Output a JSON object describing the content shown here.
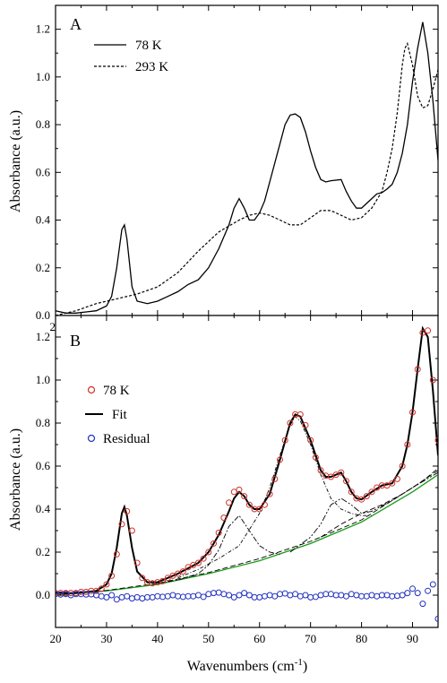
{
  "chart_data": [
    {
      "panel": "A",
      "type": "line",
      "xlabel": "Wavenumbers (cm⁻¹)",
      "ylabel": "Absorbance (a.u.)",
      "xlim": [
        20,
        95
      ],
      "ylim": [
        0.0,
        1.3
      ],
      "xticks": [
        "20",
        "30",
        "40",
        "50",
        "60",
        "70",
        "80",
        "90"
      ],
      "yticks": [
        "0.0",
        "0.2",
        "0.4",
        "0.6",
        "0.8",
        "1.0",
        "1.2"
      ],
      "legend_position": "top-left",
      "series": [
        {
          "name": "78 K",
          "style": "solid",
          "color": "#000000",
          "x": [
            20,
            22,
            24,
            26,
            28,
            30,
            31,
            32,
            33,
            33.5,
            34,
            35,
            36,
            38,
            40,
            42,
            44,
            46,
            48,
            50,
            52,
            54,
            55,
            56,
            57,
            58,
            59,
            60,
            61,
            62,
            64,
            65,
            66,
            67,
            68,
            69,
            70,
            71,
            72,
            73,
            74,
            76,
            77,
            78,
            79,
            80,
            81,
            82,
            83,
            84,
            85,
            86,
            87,
            88,
            89,
            90,
            91,
            92,
            93,
            94,
            95
          ],
          "y": [
            0.02,
            0.01,
            0.01,
            0.015,
            0.02,
            0.04,
            0.08,
            0.2,
            0.36,
            0.38,
            0.32,
            0.12,
            0.06,
            0.05,
            0.06,
            0.08,
            0.1,
            0.13,
            0.15,
            0.2,
            0.28,
            0.38,
            0.45,
            0.49,
            0.45,
            0.4,
            0.4,
            0.43,
            0.48,
            0.56,
            0.72,
            0.8,
            0.84,
            0.845,
            0.83,
            0.77,
            0.69,
            0.62,
            0.57,
            0.56,
            0.565,
            0.57,
            0.52,
            0.48,
            0.45,
            0.45,
            0.47,
            0.49,
            0.51,
            0.515,
            0.53,
            0.55,
            0.6,
            0.68,
            0.8,
            0.98,
            1.12,
            1.23,
            1.1,
            0.9,
            0.65
          ]
        },
        {
          "name": "293 K",
          "style": "dashed",
          "color": "#000000",
          "x": [
            20,
            24,
            28,
            32,
            36,
            40,
            44,
            48,
            52,
            56,
            58,
            60,
            62,
            64,
            66,
            68,
            70,
            72,
            74,
            76,
            78,
            80,
            82,
            84,
            85,
            86,
            87,
            88,
            88.5,
            89,
            90,
            91,
            92,
            93,
            94,
            95
          ],
          "y": [
            0.0,
            0.02,
            0.05,
            0.07,
            0.09,
            0.12,
            0.18,
            0.27,
            0.35,
            0.4,
            0.42,
            0.43,
            0.42,
            0.4,
            0.38,
            0.38,
            0.41,
            0.44,
            0.44,
            0.42,
            0.4,
            0.41,
            0.45,
            0.52,
            0.6,
            0.7,
            0.85,
            1.05,
            1.12,
            1.14,
            1.05,
            0.92,
            0.87,
            0.88,
            0.95,
            1.03
          ]
        }
      ]
    },
    {
      "panel": "B",
      "type": "line",
      "xlabel": "Wavenumbers (cm⁻¹)",
      "ylabel": "Absorbance (a.u.)",
      "xlim": [
        20,
        95
      ],
      "ylim": [
        -0.15,
        1.3
      ],
      "xticks": [
        "20",
        "30",
        "40",
        "50",
        "60",
        "70",
        "80",
        "90"
      ],
      "yticks": [
        "0.0",
        "0.2",
        "0.4",
        "0.6",
        "0.8",
        "1.0",
        "1.2"
      ],
      "legend_position": "top-left",
      "series": [
        {
          "name": "78 K",
          "style": "markers",
          "color": "#d0302a",
          "x": [
            20,
            21,
            22,
            23,
            24,
            25,
            26,
            27,
            28,
            29,
            30,
            31,
            32,
            33,
            34,
            35,
            36,
            37,
            38,
            39,
            40,
            41,
            42,
            43,
            44,
            45,
            46,
            47,
            48,
            49,
            50,
            51,
            52,
            53,
            54,
            55,
            56,
            57,
            58,
            59,
            60,
            61,
            62,
            63,
            64,
            65,
            66,
            67,
            68,
            69,
            70,
            71,
            72,
            73,
            74,
            75,
            76,
            77,
            78,
            79,
            80,
            81,
            82,
            83,
            84,
            85,
            86,
            87,
            88,
            89,
            90,
            91,
            92,
            93,
            94,
            95
          ],
          "y": [
            0.01,
            0.01,
            0.01,
            0.01,
            0.01,
            0.015,
            0.015,
            0.02,
            0.02,
            0.03,
            0.05,
            0.09,
            0.19,
            0.33,
            0.39,
            0.3,
            0.15,
            0.08,
            0.06,
            0.055,
            0.06,
            0.065,
            0.08,
            0.09,
            0.1,
            0.11,
            0.13,
            0.14,
            0.15,
            0.17,
            0.2,
            0.24,
            0.29,
            0.36,
            0.43,
            0.48,
            0.49,
            0.46,
            0.42,
            0.4,
            0.4,
            0.42,
            0.47,
            0.54,
            0.63,
            0.72,
            0.8,
            0.84,
            0.84,
            0.79,
            0.72,
            0.64,
            0.58,
            0.555,
            0.55,
            0.56,
            0.57,
            0.53,
            0.48,
            0.45,
            0.445,
            0.46,
            0.48,
            0.5,
            0.51,
            0.51,
            0.52,
            0.54,
            0.6,
            0.7,
            0.85,
            1.05,
            1.22,
            1.23,
            1.0,
            0.72
          ]
        },
        {
          "name": "Fit",
          "style": "solid",
          "color": "#000000",
          "x": [
            20,
            24,
            28,
            30,
            31,
            32,
            33,
            33.5,
            34,
            35,
            36,
            38,
            40,
            44,
            48,
            50,
            52,
            54,
            55,
            56,
            57,
            58,
            59,
            60,
            62,
            64,
            66,
            67,
            68,
            70,
            72,
            73,
            74,
            76,
            77,
            78,
            79,
            80,
            82,
            84,
            86,
            88,
            89,
            90,
            91,
            92,
            93,
            94,
            95
          ],
          "y": [
            0.01,
            0.01,
            0.02,
            0.05,
            0.1,
            0.22,
            0.38,
            0.41,
            0.37,
            0.22,
            0.11,
            0.06,
            0.06,
            0.1,
            0.15,
            0.2,
            0.28,
            0.39,
            0.45,
            0.48,
            0.46,
            0.42,
            0.4,
            0.4,
            0.47,
            0.63,
            0.8,
            0.84,
            0.83,
            0.72,
            0.58,
            0.55,
            0.55,
            0.57,
            0.53,
            0.48,
            0.45,
            0.445,
            0.48,
            0.51,
            0.52,
            0.6,
            0.7,
            0.85,
            1.05,
            1.24,
            1.2,
            0.95,
            0.65
          ]
        },
        {
          "name": "Residual",
          "style": "markers",
          "color": "#2030c0",
          "x": [
            20,
            21,
            22,
            23,
            24,
            25,
            26,
            27,
            28,
            29,
            30,
            31,
            32,
            33,
            34,
            35,
            36,
            37,
            38,
            39,
            40,
            41,
            42,
            43,
            44,
            45,
            46,
            47,
            48,
            49,
            50,
            51,
            52,
            53,
            54,
            55,
            56,
            57,
            58,
            59,
            60,
            61,
            62,
            63,
            64,
            65,
            66,
            67,
            68,
            69,
            70,
            71,
            72,
            73,
            74,
            75,
            76,
            77,
            78,
            79,
            80,
            81,
            82,
            83,
            84,
            85,
            86,
            87,
            88,
            89,
            90,
            91,
            92,
            93,
            94,
            95
          ],
          "y": [
            0.005,
            0.003,
            0.005,
            0.0,
            0.005,
            0.005,
            0.003,
            0.004,
            0.0,
            -0.005,
            -0.01,
            0.0,
            -0.02,
            -0.01,
            -0.005,
            -0.015,
            -0.01,
            -0.015,
            -0.01,
            -0.01,
            -0.005,
            -0.008,
            -0.005,
            0.0,
            -0.005,
            -0.008,
            -0.005,
            -0.005,
            0.0,
            -0.008,
            0.005,
            0.01,
            0.012,
            0.005,
            0.0,
            -0.01,
            0.0,
            0.01,
            0.0,
            -0.01,
            -0.01,
            -0.005,
            0.0,
            -0.005,
            0.005,
            0.008,
            0.0,
            0.005,
            -0.005,
            0.0,
            -0.01,
            -0.008,
            0.0,
            0.005,
            0.005,
            0.0,
            0.0,
            -0.005,
            0.005,
            0.0,
            -0.005,
            -0.005,
            0.0,
            -0.005,
            0.0,
            0.0,
            -0.005,
            -0.003,
            0.0,
            0.01,
            0.03,
            0.01,
            -0.04,
            0.02,
            0.05,
            -0.11
          ]
        },
        {
          "name": "",
          "style": "baseline-green",
          "color": "#1a9a1a",
          "x": [
            20,
            30,
            40,
            50,
            60,
            70,
            80,
            90,
            95
          ],
          "y": [
            0.0,
            0.02,
            0.05,
            0.1,
            0.16,
            0.24,
            0.34,
            0.48,
            0.56
          ]
        },
        {
          "name": "",
          "style": "component",
          "color": "#000000",
          "x": [
            20,
            30,
            40,
            50,
            60,
            70,
            80,
            90,
            95
          ],
          "y": [
            0.0,
            0.022,
            0.055,
            0.105,
            0.17,
            0.25,
            0.35,
            0.5,
            0.58
          ]
        },
        {
          "name": "",
          "style": "component",
          "color": "#000000",
          "x": [
            40,
            44,
            48,
            50,
            52,
            54,
            56,
            58,
            60,
            62,
            64
          ],
          "y": [
            0.055,
            0.07,
            0.1,
            0.14,
            0.21,
            0.32,
            0.37,
            0.3,
            0.23,
            0.2,
            0.19
          ]
        },
        {
          "name": "",
          "style": "component",
          "color": "#000000",
          "x": [
            44,
            48,
            52,
            56,
            60,
            62,
            64,
            66,
            67,
            68,
            70,
            72,
            74,
            76,
            78,
            80,
            82
          ],
          "y": [
            0.08,
            0.12,
            0.17,
            0.23,
            0.38,
            0.5,
            0.65,
            0.79,
            0.83,
            0.81,
            0.7,
            0.56,
            0.45,
            0.4,
            0.38,
            0.37,
            0.37
          ]
        },
        {
          "name": "",
          "style": "component",
          "color": "#000000",
          "x": [
            66,
            70,
            72,
            74,
            76,
            78,
            80,
            82,
            86,
            90,
            95
          ],
          "y": [
            0.2,
            0.27,
            0.33,
            0.42,
            0.45,
            0.42,
            0.38,
            0.39,
            0.44,
            0.5,
            0.57
          ]
        },
        {
          "name": "",
          "style": "component",
          "color": "#000000",
          "x": [
            72,
            76,
            80,
            84,
            88,
            92,
            95
          ],
          "y": [
            0.27,
            0.33,
            0.38,
            0.42,
            0.47,
            0.53,
            0.59
          ]
        }
      ]
    }
  ],
  "panels": {
    "A": {
      "label": "A"
    },
    "B": {
      "label": "B"
    }
  },
  "axis_title_prefix": "Wavenumbers (cm",
  "axis_title_sup": "-1",
  "axis_title_suffix": ")",
  "y_axis_title": "Absorbance (a.u.)"
}
